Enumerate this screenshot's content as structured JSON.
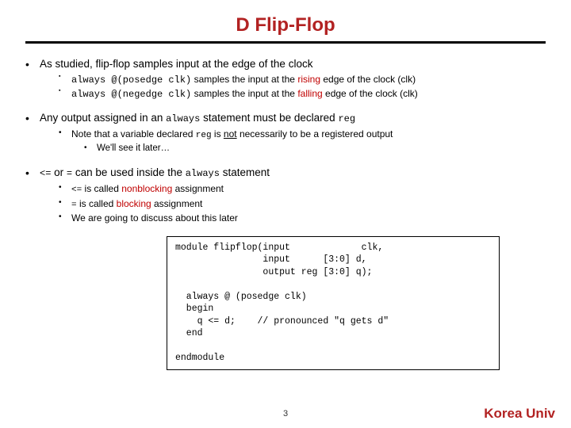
{
  "title": "D Flip-Flop",
  "colors": {
    "accent": "#b22222",
    "text": "#000000",
    "background": "#ffffff",
    "keyword_red": "#c00000"
  },
  "typography": {
    "title_fontsize": 24,
    "body_fontsize": 13.5,
    "sub_fontsize": 12,
    "code_fontsize": 11.5,
    "font_family": "Verdana",
    "mono_family": "Courier New"
  },
  "bullets": {
    "b1": {
      "text": "As studied, flip-flop samples input at the edge of the clock",
      "sub": {
        "s1a": "always @(posedge clk)",
        "s1b": " samples the input at the ",
        "s1c": "rising",
        "s1d": " edge of the clock (clk)",
        "s2a": "always @(negedge clk)",
        "s2b": " samples the input at the ",
        "s2c": "falling",
        "s2d": " edge of the clock (clk)"
      }
    },
    "b2": {
      "t1": "Any output assigned in an ",
      "t2": "always",
      "t3": " statement must be declared ",
      "t4": "reg",
      "sub": {
        "s1a": "Note that a variable declared ",
        "s1b": "reg",
        "s1c": " is ",
        "s1d": "not",
        "s1e": " necessarily to be a registered output",
        "s2": "We'll see it later…"
      }
    },
    "b3": {
      "t1": "<=",
      "t2": " or ",
      "t3": "=",
      "t4": " can be used inside the ",
      "t5": "always",
      "t6": " statement",
      "sub": {
        "s1a": "<=",
        "s1b": " is called ",
        "s1c": "nonblocking",
        "s1d": " assignment",
        "s2a": "=",
        "s2b": "  is called ",
        "s2c": "blocking",
        "s2d": " assignment",
        "s3": "We are going to discuss about this later"
      }
    }
  },
  "code": "module flipflop(input             clk,\n                input      [3:0] d,\n                output reg [3:0] q);\n\n  always @ (posedge clk)\n  begin\n    q <= d;    // pronounced \"q gets d\"\n  end\n\nendmodule",
  "page_number": "3",
  "footer": "Korea Univ"
}
